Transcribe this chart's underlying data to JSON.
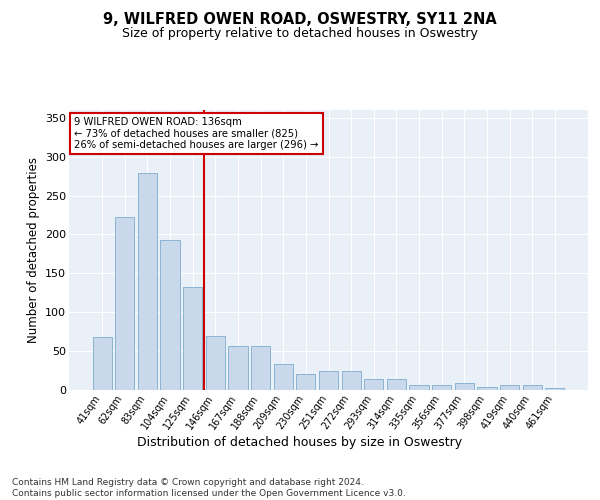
{
  "title1": "9, WILFRED OWEN ROAD, OSWESTRY, SY11 2NA",
  "title2": "Size of property relative to detached houses in Oswestry",
  "xlabel": "Distribution of detached houses by size in Oswestry",
  "ylabel": "Number of detached properties",
  "categories": [
    "41sqm",
    "62sqm",
    "83sqm",
    "104sqm",
    "125sqm",
    "146sqm",
    "167sqm",
    "188sqm",
    "209sqm",
    "230sqm",
    "251sqm",
    "272sqm",
    "293sqm",
    "314sqm",
    "335sqm",
    "356sqm",
    "377sqm",
    "398sqm",
    "419sqm",
    "440sqm",
    "461sqm"
  ],
  "values": [
    68,
    223,
    279,
    193,
    133,
    70,
    57,
    57,
    33,
    21,
    25,
    25,
    14,
    14,
    6,
    6,
    9,
    4,
    6,
    6,
    3
  ],
  "bar_color": "#c9d9eb",
  "bar_edge_color": "#8ab4d4",
  "line_color": "#cc0000",
  "line_x_index": 4.5,
  "annotation_line1": "9 WILFRED OWEN ROAD: 136sqm",
  "annotation_line2": "← 73% of detached houses are smaller (825)",
  "annotation_line3": "26% of semi-detached houses are larger (296) →",
  "annotation_box_color": "#ffffff",
  "annotation_box_edge": "#cc0000",
  "ylim": [
    0,
    360
  ],
  "yticks": [
    0,
    50,
    100,
    150,
    200,
    250,
    300,
    350
  ],
  "plot_bg": "#eaf0f8",
  "footer": "Contains HM Land Registry data © Crown copyright and database right 2024.\nContains public sector information licensed under the Open Government Licence v3.0."
}
